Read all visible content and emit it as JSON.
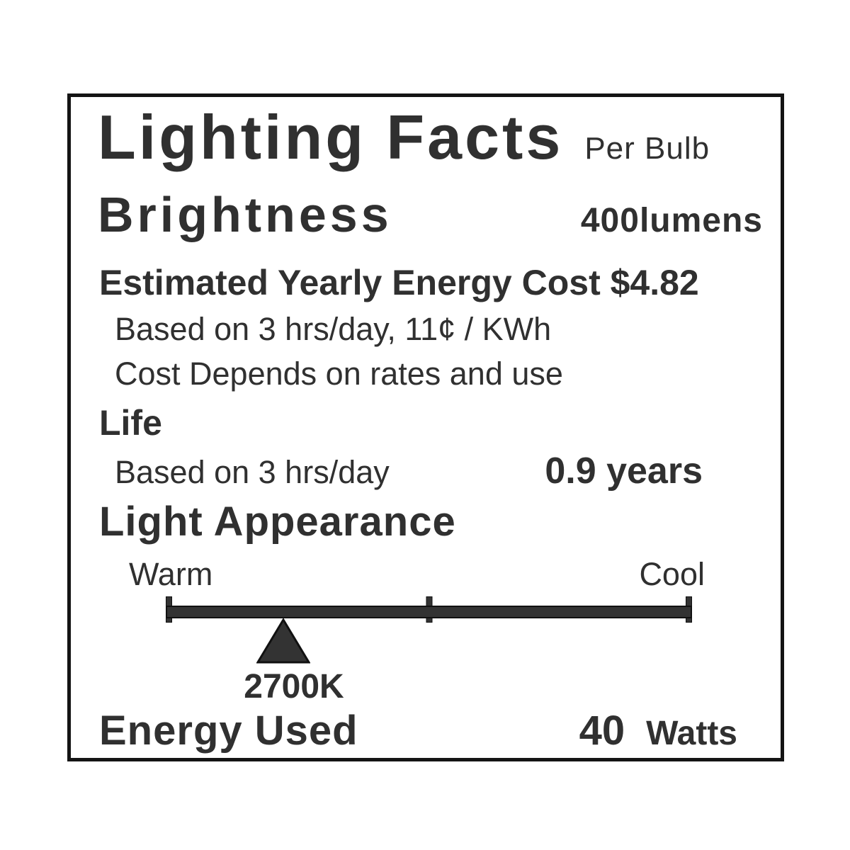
{
  "label": {
    "title": "Lighting Facts",
    "title_suffix": "Per Bulb",
    "brightness": {
      "label": "Brightness",
      "value": "400lumens"
    },
    "energy_cost": {
      "heading": "Estimated Yearly Energy Cost $4.82",
      "note_basis": "Based on 3 hrs/day, 11¢ / KWh",
      "note_rates": "Cost Depends on rates and use"
    },
    "life": {
      "label": "Life",
      "note": "Based on 3 hrs/day",
      "value": "0.9 years"
    },
    "light_appearance": {
      "label": "Light Appearance",
      "warm_label": "Warm",
      "cool_label": "Cool",
      "marker_value": "2700K",
      "marker_position_pct": 22.3
    },
    "energy_used": {
      "label": "Energy Used",
      "value": "40",
      "unit": "Watts"
    }
  },
  "colors": {
    "text": "#303030",
    "border": "#141414",
    "scale_fill": "#333333",
    "scale_stroke": "#111111",
    "background": "#ffffff"
  }
}
